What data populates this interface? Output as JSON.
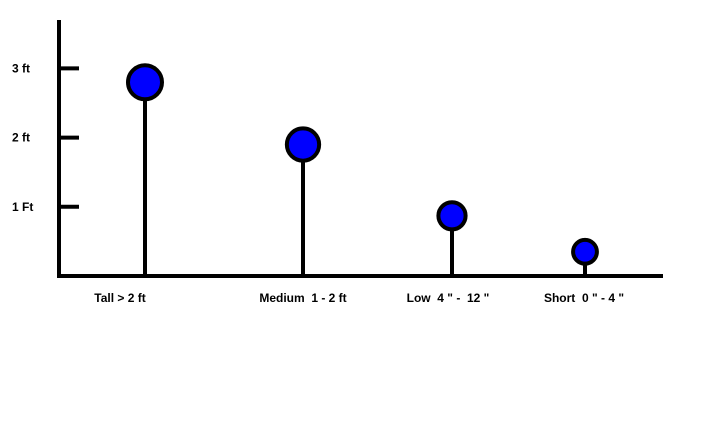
{
  "chart_data": {
    "type": "lollipop",
    "title": "",
    "xlabel": "",
    "ylabel": "",
    "ylim": [
      0,
      3.7
    ],
    "grid": false,
    "legend": "none",
    "y_ticks": [
      {
        "value": 1,
        "label": "1 Ft"
      },
      {
        "value": 2,
        "label": "2 ft"
      },
      {
        "value": 3,
        "label": "3 ft"
      }
    ],
    "categories": [
      "Tall > 2 ft",
      "Medium  1 - 2 ft",
      "Low  4 \" -  12 \"",
      "Short  0 \" - 4 \""
    ],
    "values": [
      2.8,
      1.9,
      0.87,
      0.35
    ],
    "marker_sizes": [
      1.0,
      0.95,
      0.8,
      0.7
    ],
    "colors": {
      "marker_fill": "#0000ff",
      "stroke": "#000000",
      "background": "#ffffff"
    }
  }
}
